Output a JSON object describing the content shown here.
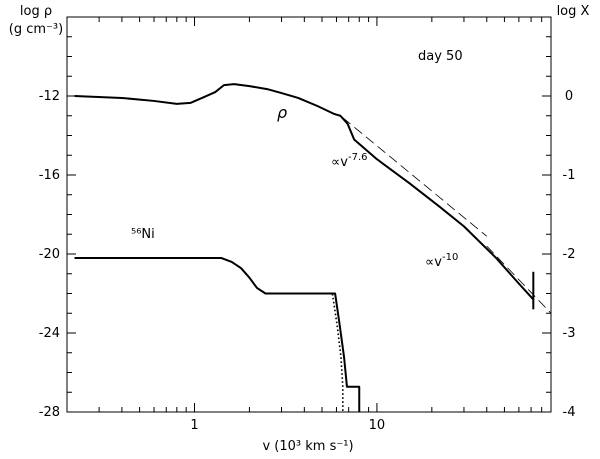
{
  "chart_data": {
    "type": "line",
    "annotation_day": "day 50",
    "left_axis": {
      "label_line1": "log ρ",
      "label_line2": "(g cm⁻³)",
      "ylim": [
        -28,
        -8
      ],
      "ticks": [
        -28,
        -24,
        -20,
        -16,
        -12
      ],
      "tick_labels": [
        "-28",
        "-24",
        "-20",
        "-16",
        "-12"
      ]
    },
    "right_axis": {
      "label": "log X",
      "ylim": [
        -4,
        1
      ],
      "ticks": [
        -4,
        -3,
        -2,
        -1,
        0
      ],
      "tick_labels": [
        "-4",
        "-3",
        "-2",
        "-1",
        "0"
      ]
    },
    "x_axis": {
      "label": "v (10³ km s⁻¹)",
      "scale": "log",
      "xlim": [
        0.2,
        90
      ],
      "tick_values": [
        1,
        10
      ],
      "tick_labels": [
        "1",
        "10"
      ]
    },
    "series": [
      {
        "name": "ρ",
        "axis": "left",
        "style": "solid",
        "points": [
          [
            0.22,
            -12.0
          ],
          [
            0.4,
            -12.1
          ],
          [
            0.6,
            -12.25
          ],
          [
            0.8,
            -12.4
          ],
          [
            0.95,
            -12.35
          ],
          [
            1.1,
            -12.1
          ],
          [
            1.3,
            -11.8
          ],
          [
            1.45,
            -11.45
          ],
          [
            1.65,
            -11.4
          ],
          [
            2.0,
            -11.5
          ],
          [
            2.5,
            -11.65
          ],
          [
            3.0,
            -11.85
          ],
          [
            3.7,
            -12.1
          ],
          [
            4.7,
            -12.5
          ],
          [
            5.8,
            -12.9
          ],
          [
            6.3,
            -13.0
          ],
          [
            6.9,
            -13.4
          ],
          [
            7.5,
            -14.2
          ],
          [
            10,
            -15.2
          ],
          [
            15,
            -16.4
          ],
          [
            22,
            -17.6
          ],
          [
            30,
            -18.6
          ],
          [
            45,
            -20.2
          ],
          [
            60,
            -21.5
          ],
          [
            72,
            -22.3
          ]
        ]
      },
      {
        "name": "56Ni",
        "axis": "right",
        "style": "solid",
        "points": [
          [
            0.22,
            -2.05
          ],
          [
            1.4,
            -2.05
          ],
          [
            1.6,
            -2.1
          ],
          [
            1.8,
            -2.18
          ],
          [
            2.0,
            -2.3
          ],
          [
            2.2,
            -2.43
          ],
          [
            2.45,
            -2.5
          ],
          [
            5.9,
            -2.5
          ],
          [
            6.25,
            -2.9
          ],
          [
            6.6,
            -3.3
          ],
          [
            6.85,
            -3.68
          ],
          [
            7.0,
            -3.68
          ],
          [
            8.0,
            -3.68
          ],
          [
            8.0,
            -4.0
          ]
        ]
      },
      {
        "name": "56Ni (dotted)",
        "axis": "right",
        "style": "dotted",
        "points": [
          [
            0.22,
            -2.05
          ],
          [
            1.4,
            -2.05
          ],
          [
            1.6,
            -2.1
          ],
          [
            1.8,
            -2.18
          ],
          [
            2.0,
            -2.3
          ],
          [
            2.2,
            -2.43
          ],
          [
            2.45,
            -2.5
          ],
          [
            5.7,
            -2.5
          ],
          [
            6.05,
            -2.9
          ],
          [
            6.35,
            -3.3
          ],
          [
            6.5,
            -3.68
          ],
          [
            6.5,
            -4.0
          ]
        ]
      },
      {
        "name": "power-law fit",
        "axis": "left",
        "style": "dashed",
        "points": [
          [
            6.5,
            -13.1
          ],
          [
            40,
            -19.1
          ]
        ]
      },
      {
        "name": "power-law fit (outer)",
        "axis": "left",
        "style": "dashed",
        "points": [
          [
            40,
            -19.6
          ],
          [
            90,
            -23.0
          ]
        ]
      }
    ],
    "label_rho": "ρ",
    "label_ni": "⁵⁶Ni",
    "label_slope1_base": "∝v",
    "label_slope1_exp": "-7.6",
    "label_slope2_base": "∝v",
    "label_slope2_exp": "-10",
    "extra_segment": {
      "x": 72,
      "y_from": -20.9,
      "y_to": -22.8
    }
  }
}
